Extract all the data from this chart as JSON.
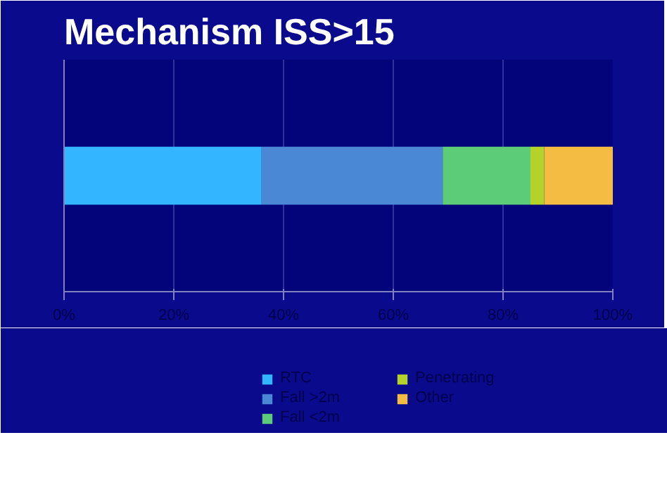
{
  "chart_data": {
    "type": "bar",
    "orientation": "horizontal",
    "stacked": true,
    "title": "Mechanism ISS>15",
    "categories": [
      null
    ],
    "series": [
      {
        "name": "RTC",
        "color": "#33b5ff",
        "values": [
          36
        ]
      },
      {
        "name": "Fall >2m",
        "color": "#4a88d6",
        "values": [
          33
        ]
      },
      {
        "name": "Fall <2m",
        "color": "#5ccc78",
        "values": [
          16
        ]
      },
      {
        "name": "Penetrating",
        "color": "#b4d22a",
        "values": [
          2.5
        ]
      },
      {
        "name": "Other",
        "color": "#f4bc42",
        "values": [
          12.5
        ]
      }
    ],
    "xlim": [
      0,
      100
    ],
    "xticks": [
      {
        "value": 0,
        "label": "0%"
      },
      {
        "value": 20,
        "label": "20%"
      },
      {
        "value": 40,
        "label": "40%"
      },
      {
        "value": 60,
        "label": "60%"
      },
      {
        "value": 80,
        "label": "80%"
      },
      {
        "value": 100,
        "label": "100%"
      }
    ],
    "grid": "x",
    "legend": "bottom"
  }
}
